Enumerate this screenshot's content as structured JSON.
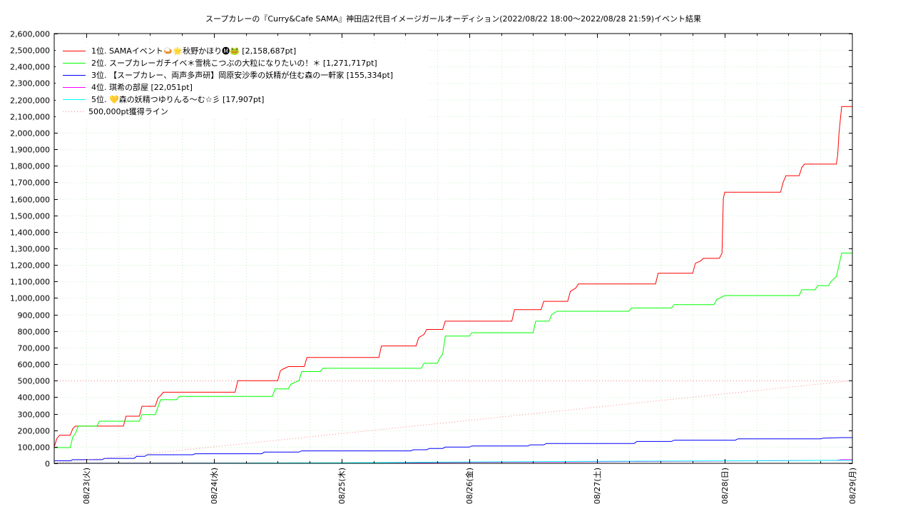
{
  "chart_data": {
    "type": "line",
    "title": "スープカレーの『Curry&Cafe SAMA』神田店2代目イメージガールオーディション(2022/08/22 18:00〜2022/08/28 21:59)",
    "subtitle": "イベント結果",
    "xlabel": "",
    "ylabel": "",
    "x_ticks": [
      "08/23(火)",
      "08/24(水)",
      "08/25(木)",
      "08/26(金)",
      "08/27(土)",
      "08/28(日)",
      "08/29(月)"
    ],
    "xlim": [
      "2022/08/22 18:00",
      "2022/08/29 00:00"
    ],
    "ylim": [
      0,
      2600000
    ],
    "y_ticks": [
      "0",
      "100,000",
      "200,000",
      "300,000",
      "400,000",
      "500,000",
      "600,000",
      "700,000",
      "800,000",
      "900,000",
      "1,000,000",
      "1,100,000",
      "1,200,000",
      "1,300,000",
      "1,400,000",
      "1,500,000",
      "1,600,000",
      "1,700,000",
      "1,800,000",
      "1,900,000",
      "2,000,000",
      "2,100,000",
      "2,200,000",
      "2,300,000",
      "2,400,000",
      "2,500,000",
      "2,600,000"
    ],
    "grid": true,
    "legend_position": "top-left",
    "series": [
      {
        "name": "1位. SAMAイベント🍛🌟秋野かほり🅜🐸 [2,158,687pt]",
        "color": "#ff0000",
        "style": "step",
        "points": [
          [
            "2022/08/22 18:00",
            100000
          ],
          [
            "2022/08/22 18:30",
            150000
          ],
          [
            "2022/08/22 19:00",
            170000
          ],
          [
            "2022/08/22 21:00",
            170000
          ],
          [
            "2022/08/22 21:30",
            210000
          ],
          [
            "2022/08/22 22:00",
            225000
          ],
          [
            "2022/08/23 07:00",
            225000
          ],
          [
            "2022/08/23 07:30",
            285000
          ],
          [
            "2022/08/23 10:00",
            285000
          ],
          [
            "2022/08/23 10:30",
            345000
          ],
          [
            "2022/08/23 13:00",
            345000
          ],
          [
            "2022/08/23 13:30",
            395000
          ],
          [
            "2022/08/23 14:00",
            410000
          ],
          [
            "2022/08/23 14:30",
            430000
          ],
          [
            "2022/08/24 04:00",
            430000
          ],
          [
            "2022/08/24 04:30",
            500000
          ],
          [
            "2022/08/24 12:00",
            500000
          ],
          [
            "2022/08/24 12:30",
            560000
          ],
          [
            "2022/08/24 13:00",
            570000
          ],
          [
            "2022/08/24 14:00",
            585000
          ],
          [
            "2022/08/24 17:00",
            585000
          ],
          [
            "2022/08/24 17:30",
            640000
          ],
          [
            "2022/08/25 07:00",
            640000
          ],
          [
            "2022/08/25 07:30",
            710000
          ],
          [
            "2022/08/25 14:00",
            710000
          ],
          [
            "2022/08/25 14:30",
            760000
          ],
          [
            "2022/08/25 15:30",
            780000
          ],
          [
            "2022/08/25 16:00",
            810000
          ],
          [
            "2022/08/25 19:00",
            810000
          ],
          [
            "2022/08/25 19:30",
            860000
          ],
          [
            "2022/08/26 08:00",
            860000
          ],
          [
            "2022/08/26 08:30",
            930000
          ],
          [
            "2022/08/26 13:30",
            930000
          ],
          [
            "2022/08/26 14:00",
            980000
          ],
          [
            "2022/08/26 18:30",
            980000
          ],
          [
            "2022/08/26 19:00",
            1040000
          ],
          [
            "2022/08/26 20:00",
            1060000
          ],
          [
            "2022/08/26 20:30",
            1085000
          ],
          [
            "2022/08/27 11:00",
            1085000
          ],
          [
            "2022/08/27 11:30",
            1150000
          ],
          [
            "2022/08/27 18:00",
            1150000
          ],
          [
            "2022/08/27 18:30",
            1210000
          ],
          [
            "2022/08/27 19:30",
            1225000
          ],
          [
            "2022/08/27 20:00",
            1240000
          ],
          [
            "2022/08/27 23:00",
            1240000
          ],
          [
            "2022/08/27 23:30",
            1270000
          ],
          [
            "2022/08/27 23:45",
            1600000
          ],
          [
            "2022/08/28 00:00",
            1640000
          ],
          [
            "2022/08/28 10:30",
            1640000
          ],
          [
            "2022/08/28 11:00",
            1700000
          ],
          [
            "2022/08/28 11:30",
            1740000
          ],
          [
            "2022/08/28 14:00",
            1740000
          ],
          [
            "2022/08/28 14:30",
            1790000
          ],
          [
            "2022/08/28 15:00",
            1810000
          ],
          [
            "2022/08/28 21:00",
            1810000
          ],
          [
            "2022/08/28 21:15",
            1870000
          ],
          [
            "2022/08/28 21:30",
            2000000
          ],
          [
            "2022/08/28 21:59",
            2158687
          ],
          [
            "2022/08/29 00:00",
            2158687
          ]
        ]
      },
      {
        "name": "2位. スープカレーガチイベ＊雪桃こつぶの大粒になりたいの！＊ [1,271,717pt]",
        "color": "#00ff00",
        "style": "step",
        "points": [
          [
            "2022/08/22 18:00",
            95000
          ],
          [
            "2022/08/22 21:00",
            95000
          ],
          [
            "2022/08/22 21:30",
            160000
          ],
          [
            "2022/08/22 22:00",
            180000
          ],
          [
            "2022/08/22 22:30",
            225000
          ],
          [
            "2022/08/23 02:00",
            225000
          ],
          [
            "2022/08/23 02:30",
            255000
          ],
          [
            "2022/08/23 10:00",
            255000
          ],
          [
            "2022/08/23 10:30",
            295000
          ],
          [
            "2022/08/23 13:00",
            295000
          ],
          [
            "2022/08/23 13:30",
            340000
          ],
          [
            "2022/08/23 14:00",
            385000
          ],
          [
            "2022/08/23 17:00",
            385000
          ],
          [
            "2022/08/23 17:30",
            405000
          ],
          [
            "2022/08/24 11:00",
            405000
          ],
          [
            "2022/08/24 11:30",
            450000
          ],
          [
            "2022/08/24 14:00",
            450000
          ],
          [
            "2022/08/24 14:30",
            480000
          ],
          [
            "2022/08/24 16:00",
            500000
          ],
          [
            "2022/08/24 16:30",
            555000
          ],
          [
            "2022/08/24 20:00",
            555000
          ],
          [
            "2022/08/24 20:30",
            575000
          ],
          [
            "2022/08/25 15:00",
            575000
          ],
          [
            "2022/08/25 15:30",
            605000
          ],
          [
            "2022/08/25 18:00",
            605000
          ],
          [
            "2022/08/25 18:30",
            640000
          ],
          [
            "2022/08/25 19:00",
            660000
          ],
          [
            "2022/08/25 19:30",
            770000
          ],
          [
            "2022/08/26 00:00",
            770000
          ],
          [
            "2022/08/26 00:30",
            790000
          ],
          [
            "2022/08/26 12:00",
            790000
          ],
          [
            "2022/08/26 12:30",
            860000
          ],
          [
            "2022/08/26 15:00",
            860000
          ],
          [
            "2022/08/26 15:30",
            900000
          ],
          [
            "2022/08/26 16:30",
            920000
          ],
          [
            "2022/08/27 06:00",
            920000
          ],
          [
            "2022/08/27 06:30",
            940000
          ],
          [
            "2022/08/27 14:00",
            940000
          ],
          [
            "2022/08/27 14:30",
            960000
          ],
          [
            "2022/08/27 22:00",
            960000
          ],
          [
            "2022/08/27 22:30",
            990000
          ],
          [
            "2022/08/28 00:00",
            1015000
          ],
          [
            "2022/08/28 14:00",
            1015000
          ],
          [
            "2022/08/28 14:30",
            1050000
          ],
          [
            "2022/08/28 17:00",
            1050000
          ],
          [
            "2022/08/28 17:30",
            1075000
          ],
          [
            "2022/08/28 19:30",
            1075000
          ],
          [
            "2022/08/28 20:00",
            1100000
          ],
          [
            "2022/08/28 21:00",
            1130000
          ],
          [
            "2022/08/28 21:30",
            1200000
          ],
          [
            "2022/08/28 21:59",
            1271717
          ],
          [
            "2022/08/29 00:00",
            1271717
          ]
        ]
      },
      {
        "name": "3位. 【スープカレー、両声多声研】岡原安沙季の妖精が住む森の一軒家 [155,334pt]",
        "color": "#0000ff",
        "style": "step",
        "points": [
          [
            "2022/08/22 18:00",
            15000
          ],
          [
            "2022/08/22 21:00",
            15000
          ],
          [
            "2022/08/22 21:30",
            22000
          ],
          [
            "2022/08/23 03:00",
            22000
          ],
          [
            "2022/08/23 03:30",
            30000
          ],
          [
            "2022/08/23 09:00",
            30000
          ],
          [
            "2022/08/23 09:30",
            42000
          ],
          [
            "2022/08/23 11:00",
            42000
          ],
          [
            "2022/08/23 11:30",
            52000
          ],
          [
            "2022/08/23 20:00",
            52000
          ],
          [
            "2022/08/23 20:30",
            58000
          ],
          [
            "2022/08/24 09:00",
            58000
          ],
          [
            "2022/08/24 09:30",
            68000
          ],
          [
            "2022/08/24 16:00",
            68000
          ],
          [
            "2022/08/24 16:30",
            75000
          ],
          [
            "2022/08/25 13:00",
            75000
          ],
          [
            "2022/08/25 13:30",
            82000
          ],
          [
            "2022/08/25 16:00",
            82000
          ],
          [
            "2022/08/25 16:30",
            90000
          ],
          [
            "2022/08/25 19:00",
            90000
          ],
          [
            "2022/08/25 19:30",
            98000
          ],
          [
            "2022/08/26 00:00",
            98000
          ],
          [
            "2022/08/26 00:30",
            105000
          ],
          [
            "2022/08/26 11:00",
            105000
          ],
          [
            "2022/08/26 11:30",
            112000
          ],
          [
            "2022/08/26 14:00",
            112000
          ],
          [
            "2022/08/26 14:30",
            120000
          ],
          [
            "2022/08/27 07:00",
            120000
          ],
          [
            "2022/08/27 07:30",
            132000
          ],
          [
            "2022/08/27 14:00",
            132000
          ],
          [
            "2022/08/27 14:30",
            140000
          ],
          [
            "2022/08/28 02:00",
            140000
          ],
          [
            "2022/08/28 02:30",
            148000
          ],
          [
            "2022/08/28 18:00",
            148000
          ],
          [
            "2022/08/28 18:30",
            152000
          ],
          [
            "2022/08/28 21:59",
            155334
          ],
          [
            "2022/08/29 00:00",
            155334
          ]
        ]
      },
      {
        "name": "4位. 琪希の部屋 [22,051pt]",
        "color": "#ff00ff",
        "style": "step",
        "points": [
          [
            "2022/08/22 18:00",
            0
          ],
          [
            "2022/08/25 00:00",
            2000
          ],
          [
            "2022/08/26 00:00",
            6000
          ],
          [
            "2022/08/27 00:00",
            10000
          ],
          [
            "2022/08/28 00:00",
            14000
          ],
          [
            "2022/08/28 21:00",
            18000
          ],
          [
            "2022/08/28 21:59",
            22051
          ],
          [
            "2022/08/29 00:00",
            22051
          ]
        ]
      },
      {
        "name": "5位. 💛森の妖精つゆりんる〜む☆彡 [17,907pt]",
        "color": "#00ffff",
        "style": "step",
        "points": [
          [
            "2022/08/22 18:00",
            0
          ],
          [
            "2022/08/25 00:00",
            3000
          ],
          [
            "2022/08/26 00:00",
            8000
          ],
          [
            "2022/08/27 00:00",
            12000
          ],
          [
            "2022/08/28 00:00",
            15000
          ],
          [
            "2022/08/28 21:59",
            17907
          ],
          [
            "2022/08/29 00:00",
            17907
          ]
        ]
      },
      {
        "name": "500,000pt獲得ライン",
        "color": "#ff8888",
        "style": "dotted",
        "points": [
          [
            "2022/08/22 18:00",
            0
          ],
          [
            "2022/08/29 00:00",
            500000
          ]
        ]
      }
    ],
    "reference_lines": [
      {
        "y": 500000,
        "color": "#ff8888",
        "style": "dotted"
      }
    ]
  }
}
